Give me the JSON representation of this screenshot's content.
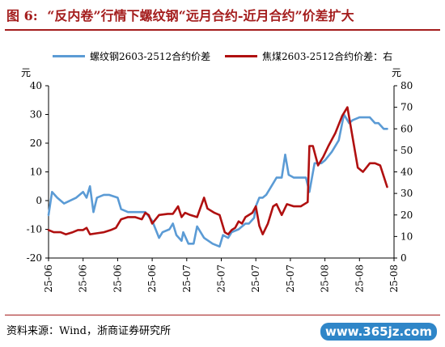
{
  "header": {
    "figure_label": "图 6:",
    "title": "“反内卷”行情下螺纹钢“远月合约-近月合约”价差扩大"
  },
  "colors": {
    "accent": "#a41d1d",
    "rebar": "#5b9bd5",
    "coke": "#b01010"
  },
  "footer": {
    "source": "资料来源：Wind，浙商证券研究所",
    "watermark": "www.365jz.com"
  },
  "chart_data": {
    "type": "line",
    "left_unit": "元",
    "right_unit": "元",
    "ylim_left": [
      -20,
      40
    ],
    "yticks_left": [
      -20,
      -10,
      0,
      10,
      20,
      30,
      40
    ],
    "ylim_right": [
      0,
      80
    ],
    "yticks_right": [
      0,
      10,
      20,
      30,
      40,
      50,
      60,
      70,
      80
    ],
    "xlim": [
      0,
      10
    ],
    "xtick_labels": [
      "25-06",
      "25-06",
      "25-06",
      "25-06",
      "25-07",
      "25-07",
      "25-07",
      "25-07",
      "25-08",
      "25-08",
      "25-08"
    ],
    "grid": false,
    "legend_position": "top",
    "series": [
      {
        "name": "螺纹钢2603-2512合约价差",
        "axis": "left",
        "color": "#5b9bd5",
        "points": [
          [
            0.0,
            -5
          ],
          [
            0.1,
            3
          ],
          [
            0.25,
            1
          ],
          [
            0.45,
            -1
          ],
          [
            0.8,
            1
          ],
          [
            1.0,
            3
          ],
          [
            1.1,
            1
          ],
          [
            1.2,
            5
          ],
          [
            1.3,
            -4
          ],
          [
            1.4,
            1
          ],
          [
            1.6,
            2
          ],
          [
            1.75,
            2
          ],
          [
            2.0,
            1
          ],
          [
            2.1,
            -3
          ],
          [
            2.3,
            -4
          ],
          [
            2.6,
            -4
          ],
          [
            2.8,
            -4
          ],
          [
            3.0,
            -7
          ],
          [
            3.2,
            -13
          ],
          [
            3.3,
            -11
          ],
          [
            3.5,
            -10
          ],
          [
            3.6,
            -8
          ],
          [
            3.7,
            -12
          ],
          [
            3.85,
            -14
          ],
          [
            3.9,
            -11
          ],
          [
            4.05,
            -15
          ],
          [
            4.2,
            -15
          ],
          [
            4.3,
            -9
          ],
          [
            4.5,
            -13
          ],
          [
            4.75,
            -15
          ],
          [
            4.95,
            -16
          ],
          [
            5.05,
            -12
          ],
          [
            5.2,
            -13
          ],
          [
            5.3,
            -11
          ],
          [
            5.5,
            -10
          ],
          [
            5.7,
            -8
          ],
          [
            5.8,
            -8
          ],
          [
            5.95,
            -6
          ],
          [
            6.0,
            -2
          ],
          [
            6.1,
            1
          ],
          [
            6.2,
            1
          ],
          [
            6.3,
            2
          ],
          [
            6.5,
            6
          ],
          [
            6.6,
            8
          ],
          [
            6.75,
            8
          ],
          [
            6.85,
            16
          ],
          [
            6.95,
            9
          ],
          [
            7.1,
            8
          ],
          [
            7.3,
            8
          ],
          [
            7.45,
            8
          ],
          [
            7.55,
            3
          ],
          [
            7.7,
            13
          ],
          [
            7.9,
            13
          ],
          [
            8.0,
            14
          ],
          [
            8.2,
            17
          ],
          [
            8.4,
            21
          ],
          [
            8.55,
            30
          ],
          [
            8.7,
            27
          ],
          [
            8.8,
            28
          ],
          [
            9.0,
            29
          ],
          [
            9.1,
            29
          ],
          [
            9.3,
            29
          ],
          [
            9.45,
            27
          ],
          [
            9.55,
            27
          ],
          [
            9.7,
            25
          ],
          [
            9.8,
            25
          ]
        ]
      },
      {
        "name": "焦煤2603-2512合约价差：右",
        "axis": "right",
        "color": "#b01010",
        "points": [
          [
            0.0,
            13
          ],
          [
            0.15,
            12
          ],
          [
            0.35,
            12
          ],
          [
            0.5,
            11
          ],
          [
            0.7,
            12
          ],
          [
            0.85,
            13
          ],
          [
            1.0,
            13
          ],
          [
            1.1,
            14
          ],
          [
            1.2,
            11
          ],
          [
            1.4,
            11.5
          ],
          [
            1.6,
            12
          ],
          [
            1.8,
            13
          ],
          [
            1.95,
            14
          ],
          [
            2.1,
            18
          ],
          [
            2.3,
            19
          ],
          [
            2.5,
            19
          ],
          [
            2.7,
            18
          ],
          [
            2.8,
            21
          ],
          [
            2.9,
            20
          ],
          [
            3.0,
            16
          ],
          [
            3.1,
            18
          ],
          [
            3.2,
            20
          ],
          [
            3.45,
            20.5
          ],
          [
            3.6,
            20.5
          ],
          [
            3.75,
            24
          ],
          [
            3.85,
            19
          ],
          [
            3.95,
            21
          ],
          [
            4.1,
            20
          ],
          [
            4.3,
            19
          ],
          [
            4.5,
            28
          ],
          [
            4.6,
            23
          ],
          [
            4.8,
            21
          ],
          [
            4.95,
            20
          ],
          [
            5.1,
            12
          ],
          [
            5.2,
            11
          ],
          [
            5.3,
            13
          ],
          [
            5.4,
            14
          ],
          [
            5.5,
            17
          ],
          [
            5.6,
            16
          ],
          [
            5.7,
            19
          ],
          [
            5.9,
            21
          ],
          [
            6.0,
            24
          ],
          [
            6.1,
            15
          ],
          [
            6.2,
            11
          ],
          [
            6.35,
            16
          ],
          [
            6.5,
            24
          ],
          [
            6.6,
            25
          ],
          [
            6.75,
            20
          ],
          [
            6.9,
            25
          ],
          [
            7.1,
            24
          ],
          [
            7.3,
            24
          ],
          [
            7.5,
            26
          ],
          [
            7.55,
            52
          ],
          [
            7.65,
            52
          ],
          [
            7.8,
            43
          ],
          [
            7.95,
            47
          ],
          [
            8.1,
            52
          ],
          [
            8.3,
            58
          ],
          [
            8.5,
            66
          ],
          [
            8.65,
            70
          ],
          [
            8.8,
            56
          ],
          [
            8.95,
            42
          ],
          [
            9.1,
            40
          ],
          [
            9.3,
            44
          ],
          [
            9.45,
            44
          ],
          [
            9.6,
            43
          ],
          [
            9.7,
            38
          ],
          [
            9.8,
            33
          ]
        ]
      }
    ]
  }
}
